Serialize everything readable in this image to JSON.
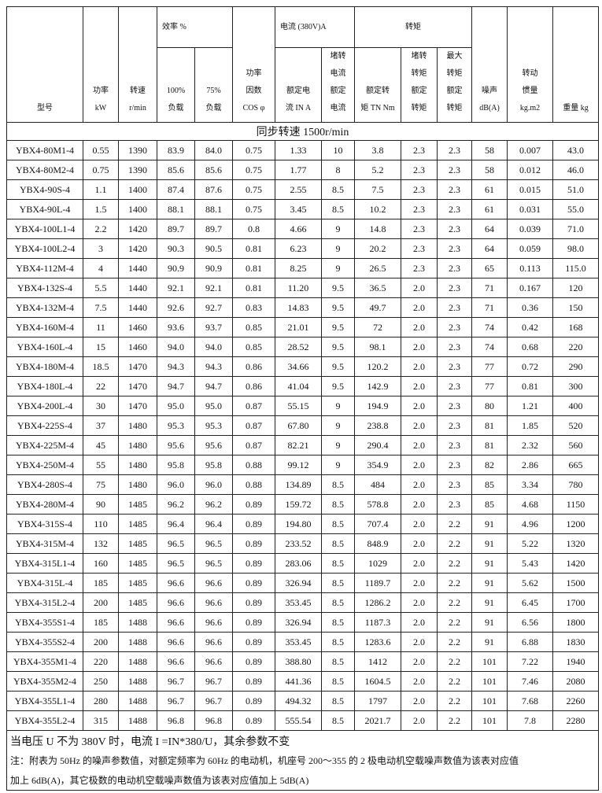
{
  "headers": {
    "model": "型号",
    "power": [
      "功率",
      "kW"
    ],
    "speed": [
      "转速",
      "r/min"
    ],
    "efficiency": "效率  %",
    "eff_100": [
      "100%",
      "负载"
    ],
    "eff_75": [
      "75%",
      "负载"
    ],
    "power_factor": [
      "功率",
      "因数",
      "COS φ"
    ],
    "current": "电流 (380V)A",
    "rated_current": [
      "额定电",
      "流 IN A"
    ],
    "locked_current": [
      "堵转",
      "电流",
      "额定",
      "电流"
    ],
    "torque": "转矩",
    "rated_torque": [
      "额定转",
      "矩 TN Nm"
    ],
    "locked_torque": [
      "堵转",
      "转矩",
      "额定",
      "转矩"
    ],
    "max_torque": [
      "最大",
      "转矩",
      "额定",
      "转矩"
    ],
    "noise": [
      "噪声",
      "dB(A)"
    ],
    "inertia": [
      "转动",
      "惯量",
      "kg.m2"
    ],
    "weight": "重量 kg"
  },
  "sync_speed": "同步转速  1500r/min",
  "rows": [
    [
      "YBX4-80M1-4",
      "0.55",
      "1390",
      "83.9",
      "84.0",
      "0.75",
      "1.33",
      "10",
      "3.8",
      "2.3",
      "2.3",
      "58",
      "0.007",
      "43.0"
    ],
    [
      "YBX4-80M2-4",
      "0.75",
      "1390",
      "85.6",
      "85.6",
      "0.75",
      "1.77",
      "8",
      "5.2",
      "2.3",
      "2.3",
      "58",
      "0.012",
      "46.0"
    ],
    [
      "YBX4-90S-4",
      "1.1",
      "1400",
      "87.4",
      "87.6",
      "0.75",
      "2.55",
      "8.5",
      "7.5",
      "2.3",
      "2.3",
      "61",
      "0.015",
      "51.0"
    ],
    [
      "YBX4-90L-4",
      "1.5",
      "1400",
      "88.1",
      "88.1",
      "0.75",
      "3.45",
      "8.5",
      "10.2",
      "2.3",
      "2.3",
      "61",
      "0.031",
      "55.0"
    ],
    [
      "YBX4-100L1-4",
      "2.2",
      "1420",
      "89.7",
      "89.7",
      "0.8",
      "4.66",
      "9",
      "14.8",
      "2.3",
      "2.3",
      "64",
      "0.039",
      "71.0"
    ],
    [
      "YBX4-100L2-4",
      "3",
      "1420",
      "90.3",
      "90.5",
      "0.81",
      "6.23",
      "9",
      "20.2",
      "2.3",
      "2.3",
      "64",
      "0.059",
      "98.0"
    ],
    [
      "YBX4-112M-4",
      "4",
      "1440",
      "90.9",
      "90.9",
      "0.81",
      "8.25",
      "9",
      "26.5",
      "2.3",
      "2.3",
      "65",
      "0.113",
      "115.0"
    ],
    [
      "YBX4-132S-4",
      "5.5",
      "1440",
      "92.1",
      "92.1",
      "0.81",
      "11.20",
      "9.5",
      "36.5",
      "2.0",
      "2.3",
      "71",
      "0.167",
      "120"
    ],
    [
      "YBX4-132M-4",
      "7.5",
      "1440",
      "92.6",
      "92.7",
      "0.83",
      "14.83",
      "9.5",
      "49.7",
      "2.0",
      "2.3",
      "71",
      "0.36",
      "150"
    ],
    [
      "YBX4-160M-4",
      "11",
      "1460",
      "93.6",
      "93.7",
      "0.85",
      "21.01",
      "9.5",
      "72",
      "2.0",
      "2.3",
      "74",
      "0.42",
      "168"
    ],
    [
      "YBX4-160L-4",
      "15",
      "1460",
      "94.0",
      "94.0",
      "0.85",
      "28.52",
      "9.5",
      "98.1",
      "2.0",
      "2.3",
      "74",
      "0.68",
      "220"
    ],
    [
      "YBX4-180M-4",
      "18.5",
      "1470",
      "94.3",
      "94.3",
      "0.86",
      "34.66",
      "9.5",
      "120.2",
      "2.0",
      "2.3",
      "77",
      "0.72",
      "290"
    ],
    [
      "YBX4-180L-4",
      "22",
      "1470",
      "94.7",
      "94.7",
      "0.86",
      "41.04",
      "9.5",
      "142.9",
      "2.0",
      "2.3",
      "77",
      "0.81",
      "300"
    ],
    [
      "YBX4-200L-4",
      "30",
      "1470",
      "95.0",
      "95.0",
      "0.87",
      "55.15",
      "9",
      "194.9",
      "2.0",
      "2.3",
      "80",
      "1.21",
      "400"
    ],
    [
      "YBX4-225S-4",
      "37",
      "1480",
      "95.3",
      "95.3",
      "0.87",
      "67.80",
      "9",
      "238.8",
      "2.0",
      "2.3",
      "81",
      "1.85",
      "520"
    ],
    [
      "YBX4-225M-4",
      "45",
      "1480",
      "95.6",
      "95.6",
      "0.87",
      "82.21",
      "9",
      "290.4",
      "2.0",
      "2.3",
      "81",
      "2.32",
      "560"
    ],
    [
      "YBX4-250M-4",
      "55",
      "1480",
      "95.8",
      "95.8",
      "0.88",
      "99.12",
      "9",
      "354.9",
      "2.0",
      "2.3",
      "82",
      "2.86",
      "665"
    ],
    [
      "YBX4-280S-4",
      "75",
      "1480",
      "96.0",
      "96.0",
      "0.88",
      "134.89",
      "8.5",
      "484",
      "2.0",
      "2.3",
      "85",
      "3.34",
      "780"
    ],
    [
      "YBX4-280M-4",
      "90",
      "1485",
      "96.2",
      "96.2",
      "0.89",
      "159.72",
      "8.5",
      "578.8",
      "2.0",
      "2.3",
      "85",
      "4.68",
      "1150"
    ],
    [
      "YBX4-315S-4",
      "110",
      "1485",
      "96.4",
      "96.4",
      "0.89",
      "194.80",
      "8.5",
      "707.4",
      "2.0",
      "2.2",
      "91",
      "4.96",
      "1200"
    ],
    [
      "YBX4-315M-4",
      "132",
      "1485",
      "96.5",
      "96.5",
      "0.89",
      "233.52",
      "8.5",
      "848.9",
      "2.0",
      "2.2",
      "91",
      "5.22",
      "1320"
    ],
    [
      "YBX4-315L1-4",
      "160",
      "1485",
      "96.5",
      "96.5",
      "0.89",
      "283.06",
      "8.5",
      "1029",
      "2.0",
      "2.2",
      "91",
      "5.43",
      "1420"
    ],
    [
      "YBX4-315L-4",
      "185",
      "1485",
      "96.6",
      "96.6",
      "0.89",
      "326.94",
      "8.5",
      "1189.7",
      "2.0",
      "2.2",
      "91",
      "5.62",
      "1500"
    ],
    [
      "YBX4-315L2-4",
      "200",
      "1485",
      "96.6",
      "96.6",
      "0.89",
      "353.45",
      "8.5",
      "1286.2",
      "2.0",
      "2.2",
      "91",
      "6.45",
      "1700"
    ],
    [
      "YBX4-355S1-4",
      "185",
      "1488",
      "96.6",
      "96.6",
      "0.89",
      "326.94",
      "8.5",
      "1187.3",
      "2.0",
      "2.2",
      "91",
      "6.56",
      "1800"
    ],
    [
      "YBX4-355S2-4",
      "200",
      "1488",
      "96.6",
      "96.6",
      "0.89",
      "353.45",
      "8.5",
      "1283.6",
      "2.0",
      "2.2",
      "91",
      "6.88",
      "1830"
    ],
    [
      "YBX4-355M1-4",
      "220",
      "1488",
      "96.6",
      "96.6",
      "0.89",
      "388.80",
      "8.5",
      "1412",
      "2.0",
      "2.2",
      "101",
      "7.22",
      "1940"
    ],
    [
      "YBX4-355M2-4",
      "250",
      "1488",
      "96.7",
      "96.7",
      "0.89",
      "441.36",
      "8.5",
      "1604.5",
      "2.0",
      "2.2",
      "101",
      "7.46",
      "2080"
    ],
    [
      "YBX4-355L1-4",
      "280",
      "1488",
      "96.7",
      "96.7",
      "0.89",
      "494.32",
      "8.5",
      "1797",
      "2.0",
      "2.2",
      "101",
      "7.68",
      "2260"
    ],
    [
      "YBX4-355L2-4",
      "315",
      "1488",
      "96.8",
      "96.8",
      "0.89",
      "555.54",
      "8.5",
      "2021.7",
      "2.0",
      "2.2",
      "101",
      "7.8",
      "2280"
    ]
  ],
  "notes": {
    "voltage": "当电压 U 不为 380V 时，电流 I =IN*380/U，其余参数不变",
    "line1": "注：附表为 50Hz 的噪声参数值，对额定频率为 60Hz 的电动机，机座号 200～355 的 2 极电动机空载噪声数值为该表对应值",
    "line2": "加上 6dB(A)，其它极数的电动机空载噪声数值为该表对应值加上 5dB(A)"
  }
}
